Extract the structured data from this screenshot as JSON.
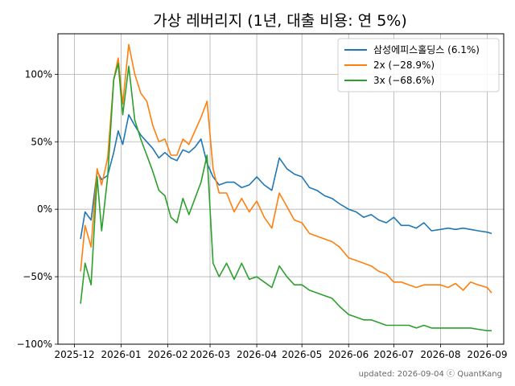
{
  "chart_data": {
    "type": "line",
    "title": "가상 레버리지 (1년, 대출 비용: 연 5%)",
    "xlabel": "",
    "ylabel": "",
    "ylim": [
      -100,
      130
    ],
    "xlim": [
      "2025-11-20",
      "2026-09-12"
    ],
    "grid": true,
    "legend_position": "top-right",
    "x_ticks": [
      {
        "date": "2025-12-01",
        "label": "2025-12"
      },
      {
        "date": "2026-01-01",
        "label": "2026-01"
      },
      {
        "date": "2026-02-01",
        "label": "2026-02"
      },
      {
        "date": "2026-03-01",
        "label": "2026-03"
      },
      {
        "date": "2026-04-01",
        "label": "2026-04"
      },
      {
        "date": "2026-05-01",
        "label": "2026-05"
      },
      {
        "date": "2026-06-01",
        "label": "2026-06"
      },
      {
        "date": "2026-07-01",
        "label": "2026-07"
      },
      {
        "date": "2026-08-01",
        "label": "2026-08"
      },
      {
        "date": "2026-09-01",
        "label": "2026-09"
      }
    ],
    "y_ticks": [
      {
        "value": 100,
        "label": "100%"
      },
      {
        "value": 50,
        "label": "50%"
      },
      {
        "value": 0,
        "label": "0%"
      },
      {
        "value": -50,
        "label": "−50%"
      },
      {
        "value": -100,
        "label": "−100%"
      }
    ],
    "x": [
      "2025-12-05",
      "2025-12-08",
      "2025-12-12",
      "2025-12-16",
      "2025-12-19",
      "2025-12-23",
      "2025-12-27",
      "2025-12-30",
      "2026-01-02",
      "2026-01-06",
      "2026-01-10",
      "2026-01-14",
      "2026-01-18",
      "2026-01-22",
      "2026-01-26",
      "2026-01-30",
      "2026-02-03",
      "2026-02-07",
      "2026-02-11",
      "2026-02-15",
      "2026-02-19",
      "2026-02-23",
      "2026-02-27",
      "2026-03-03",
      "2026-03-07",
      "2026-03-12",
      "2026-03-17",
      "2026-03-22",
      "2026-03-27",
      "2026-04-01",
      "2026-04-06",
      "2026-04-11",
      "2026-04-16",
      "2026-04-21",
      "2026-04-26",
      "2026-05-01",
      "2026-05-06",
      "2026-05-11",
      "2026-05-16",
      "2026-05-21",
      "2026-05-26",
      "2026-06-01",
      "2026-06-06",
      "2026-06-11",
      "2026-06-16",
      "2026-06-21",
      "2026-06-26",
      "2026-07-01",
      "2026-07-06",
      "2026-07-11",
      "2026-07-16",
      "2026-07-21",
      "2026-07-26",
      "2026-08-01",
      "2026-08-06",
      "2026-08-11",
      "2026-08-16",
      "2026-08-21",
      "2026-08-26",
      "2026-09-01",
      "2026-09-04"
    ],
    "series": [
      {
        "name": "삼성에피스홀딩스 (6.1%)",
        "color": "#1f77b4",
        "values": [
          -22,
          -2,
          -8,
          28,
          22,
          25,
          42,
          58,
          48,
          70,
          62,
          55,
          50,
          45,
          38,
          42,
          38,
          36,
          44,
          42,
          46,
          52,
          34,
          24,
          18,
          20,
          20,
          16,
          18,
          24,
          18,
          14,
          38,
          30,
          26,
          24,
          16,
          14,
          10,
          8,
          4,
          0,
          -2,
          -6,
          -4,
          -8,
          -10,
          -6,
          -12,
          -12,
          -14,
          -10,
          -16,
          -15,
          -14,
          -15,
          -14,
          -15,
          -16,
          -17,
          -18
        ]
      },
      {
        "name": "2x (−28.9%)",
        "color": "#ff7f0e",
        "values": [
          -46,
          -12,
          -28,
          30,
          18,
          38,
          96,
          112,
          78,
          122,
          100,
          86,
          80,
          62,
          50,
          52,
          40,
          40,
          52,
          48,
          58,
          68,
          80,
          30,
          12,
          12,
          -2,
          8,
          -2,
          6,
          -6,
          -14,
          12,
          2,
          -8,
          -10,
          -18,
          -20,
          -22,
          -24,
          -28,
          -36,
          -38,
          -40,
          -42,
          -46,
          -48,
          -54,
          -54,
          -56,
          -58,
          -56,
          -56,
          -56,
          -58,
          -55,
          -60,
          -54,
          -56,
          -58,
          -62
        ]
      },
      {
        "name": "3x (−68.6%)",
        "color": "#2ca02c",
        "values": [
          -70,
          -40,
          -56,
          24,
          -16,
          24,
          96,
          108,
          70,
          106,
          66,
          52,
          40,
          28,
          14,
          10,
          -6,
          -10,
          8,
          -4,
          8,
          20,
          40,
          -40,
          -50,
          -40,
          -52,
          -40,
          -52,
          -50,
          -54,
          -58,
          -42,
          -50,
          -56,
          -56,
          -60,
          -62,
          -64,
          -66,
          -72,
          -78,
          -80,
          -82,
          -82,
          -84,
          -86,
          -86,
          -86,
          -86,
          -88,
          -86,
          -88,
          -88,
          -88,
          -88,
          -88,
          -88,
          -89,
          -90,
          -90
        ]
      }
    ]
  },
  "footer": "updated: 2026-09-04 ⓒ QuantKang"
}
